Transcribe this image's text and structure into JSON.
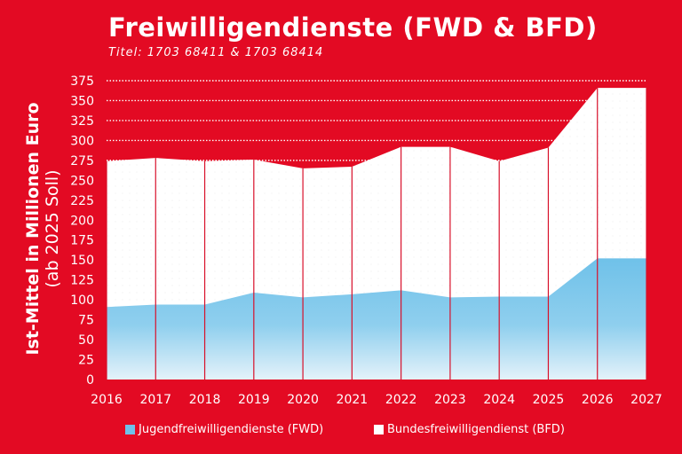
{
  "header": {
    "title": "Freiwilligendienste (FWD & BFD)",
    "subtitle": "Titel: 1703 68411 & 1703 68414"
  },
  "colors": {
    "background": "#e30a23",
    "fwd": "#6fc1e9",
    "bfd": "#ffffff",
    "divider": "#d8102a"
  },
  "chart_data": {
    "type": "area",
    "stacked": true,
    "ylabel_line1": "Ist-Mittel in Millionen Euro",
    "ylabel_line2": "(ab 2025 Soll)",
    "x": [
      "2016",
      "2017",
      "2018",
      "2019",
      "2020",
      "2021",
      "2022",
      "2023",
      "2024",
      "2025",
      "2026",
      "2027"
    ],
    "ylim": [
      0,
      375
    ],
    "yticks": [
      0,
      25,
      50,
      75,
      100,
      125,
      150,
      175,
      200,
      225,
      250,
      275,
      300,
      325,
      350,
      375
    ],
    "grid": "dotted horizontal lines above data",
    "legend_position": "bottom",
    "series": [
      {
        "name": "Jugendfreiwilligendienste (FWD)",
        "values": [
          91,
          94,
          94,
          109,
          103,
          107,
          112,
          103,
          104,
          104,
          152,
          152
        ]
      },
      {
        "name": "Bundesfreiwilligendienst (BFD)",
        "values": [
          183,
          184,
          180,
          167,
          162,
          160,
          180,
          189,
          170,
          187,
          214,
          214
        ]
      }
    ]
  }
}
